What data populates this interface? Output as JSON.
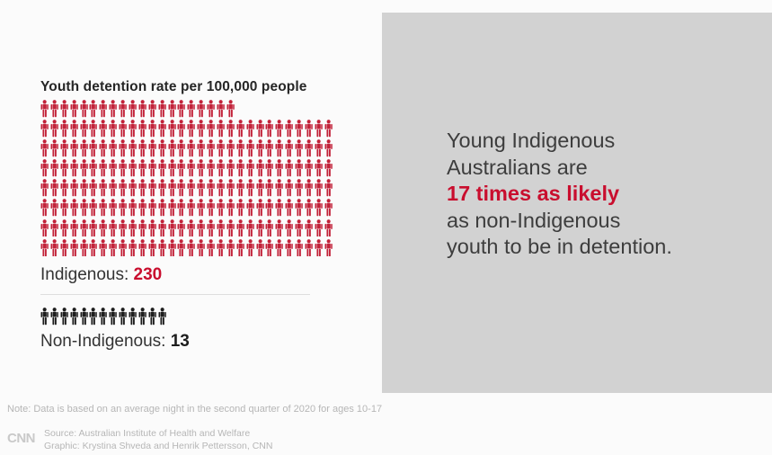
{
  "page": {
    "background": "#fbfbfb"
  },
  "chart_data": {
    "type": "pictogram",
    "title": "Youth detention rate per 100,000 people",
    "unit": "per 100,000 people",
    "icon_value": 1,
    "per_row": 30,
    "categories": [
      "Indigenous",
      "Non-Indigenous"
    ],
    "values": [
      230,
      13
    ],
    "series": [
      {
        "name": "Indigenous",
        "label": "Indigenous:",
        "value": 230,
        "icon_color": "#c2233a",
        "value_color": "#c90e2e"
      },
      {
        "name": "Non-Indigenous",
        "label": "Non-Indigenous:",
        "value": 13,
        "icon_color": "#1d1d1d",
        "value_color": "#1d1d1d"
      }
    ]
  },
  "panel": {
    "background": "#d2d2d2",
    "highlight_color": "#c90e2e",
    "lines": [
      {
        "text": "Young Indigenous",
        "style": "normal"
      },
      {
        "text": "Australians are",
        "style": "normal"
      },
      {
        "text": "17 times as likely",
        "style": "highlight"
      },
      {
        "text": "as non-Indigenous",
        "style": "normal"
      },
      {
        "text": "youth to be in detention.",
        "style": "normal"
      }
    ]
  },
  "footer": {
    "note": "Note: Data is based on an average night in the second quarter of 2020 for ages 10-17",
    "logo": "CNN",
    "source": "Source: Australian Institute of Health and Welfare",
    "credit": "Graphic: Krystina Shveda and Henrik Pettersson, CNN"
  }
}
